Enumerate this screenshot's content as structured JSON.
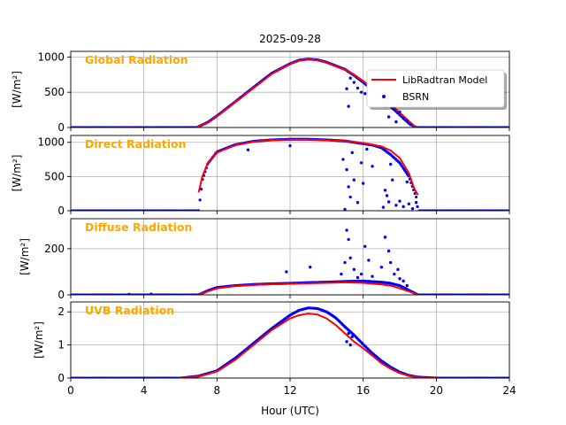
{
  "figure": {
    "title": "2025-09-28",
    "xlabel": "Hour (UTC)",
    "xlim": [
      0,
      24
    ],
    "xticks": [
      0,
      4,
      8,
      12,
      16,
      20,
      24
    ],
    "legend": {
      "placement": "top-right of first panel",
      "entries": [
        {
          "label": "LibRadtran Model",
          "color": "#ff0000",
          "marker": "line"
        },
        {
          "label": "BSRN",
          "color": "#0000ff",
          "marker": "dot"
        }
      ]
    },
    "colors": {
      "model": "#ff0000",
      "bsrn": "#0000ff",
      "panel_label": "#ffa500",
      "grid": "#b0b0b0"
    }
  },
  "chart_data": [
    {
      "type": "scatter",
      "panel_label": "Global Radiation",
      "ylabel": "[W/m²]",
      "ylim": [
        0,
        1080
      ],
      "yticks": [
        0,
        500,
        1000
      ],
      "x_start": 6.9,
      "x_end": 18.9,
      "model": [
        [
          6.9,
          0
        ],
        [
          7.5,
          70
        ],
        [
          8,
          160
        ],
        [
          9,
          360
        ],
        [
          10,
          560
        ],
        [
          11,
          760
        ],
        [
          12,
          900
        ],
        [
          12.5,
          950
        ],
        [
          13,
          965
        ],
        [
          13.5,
          955
        ],
        [
          14,
          920
        ],
        [
          15,
          820
        ],
        [
          15.5,
          750
        ],
        [
          16,
          660
        ],
        [
          16.5,
          560
        ],
        [
          17,
          440
        ],
        [
          17.5,
          330
        ],
        [
          18,
          210
        ],
        [
          18.5,
          90
        ],
        [
          18.9,
          0
        ]
      ],
      "bsrn": [
        [
          6.9,
          0
        ],
        [
          7.5,
          75
        ],
        [
          8,
          165
        ],
        [
          9,
          365
        ],
        [
          10,
          570
        ],
        [
          11,
          770
        ],
        [
          12,
          905
        ],
        [
          12.5,
          955
        ],
        [
          13,
          970
        ],
        [
          13.5,
          960
        ],
        [
          14,
          925
        ],
        [
          15,
          825
        ],
        [
          15.5,
          740
        ],
        [
          16,
          640
        ],
        [
          16.5,
          540
        ],
        [
          17,
          420
        ],
        [
          17.5,
          300
        ],
        [
          18,
          180
        ],
        [
          18.5,
          60
        ],
        [
          18.9,
          0
        ]
      ],
      "bsrn_scatter": [
        [
          15.1,
          550
        ],
        [
          15.2,
          300
        ],
        [
          15.3,
          700
        ],
        [
          15.5,
          640
        ],
        [
          15.7,
          560
        ],
        [
          15.9,
          500
        ],
        [
          16.1,
          480
        ],
        [
          16.3,
          620
        ],
        [
          17.2,
          300
        ],
        [
          17.4,
          150
        ],
        [
          17.6,
          380
        ],
        [
          17.8,
          80
        ],
        [
          18.0,
          220
        ],
        [
          18.2,
          130
        ],
        [
          18.4,
          100
        ],
        [
          18.6,
          40
        ]
      ]
    },
    {
      "type": "scatter",
      "panel_label": "Direct Radiation",
      "ylabel": "[W/m²]",
      "ylim": [
        0,
        1100
      ],
      "yticks": [
        0,
        500,
        1000
      ],
      "x_start": 7.0,
      "x_end": 19.0,
      "model": [
        [
          7,
          270
        ],
        [
          7.2,
          500
        ],
        [
          7.5,
          700
        ],
        [
          8,
          850
        ],
        [
          9,
          960
        ],
        [
          10,
          1010
        ],
        [
          11,
          1030
        ],
        [
          12,
          1040
        ],
        [
          13,
          1040
        ],
        [
          14,
          1030
        ],
        [
          15,
          1020
        ],
        [
          16,
          990
        ],
        [
          17,
          940
        ],
        [
          17.5,
          880
        ],
        [
          18,
          770
        ],
        [
          18.5,
          550
        ],
        [
          18.8,
          320
        ],
        [
          19,
          230
        ]
      ],
      "bsrn": [
        [
          7,
          0
        ],
        [
          7.2,
          450
        ],
        [
          7.5,
          690
        ],
        [
          8,
          860
        ],
        [
          9,
          965
        ],
        [
          10,
          1015
        ],
        [
          11,
          1035
        ],
        [
          12,
          1045
        ],
        [
          13,
          1045
        ],
        [
          14,
          1035
        ],
        [
          15,
          1020
        ],
        [
          15.5,
          1000
        ],
        [
          16,
          980
        ],
        [
          16.5,
          960
        ],
        [
          17,
          920
        ],
        [
          17.5,
          820
        ],
        [
          18,
          700
        ],
        [
          18.5,
          500
        ],
        [
          18.9,
          200
        ],
        [
          19,
          0
        ]
      ],
      "bsrn_scatter": [
        [
          9.7,
          890
        ],
        [
          12,
          950
        ],
        [
          14.9,
          750
        ],
        [
          15.0,
          20
        ],
        [
          15.1,
          600
        ],
        [
          15.2,
          350
        ],
        [
          15.3,
          200
        ],
        [
          15.4,
          850
        ],
        [
          15.5,
          450
        ],
        [
          15.7,
          120
        ],
        [
          15.9,
          700
        ],
        [
          16.0,
          400
        ],
        [
          16.2,
          900
        ],
        [
          16.5,
          650
        ],
        [
          17.1,
          50
        ],
        [
          17.2,
          300
        ],
        [
          17.3,
          220
        ],
        [
          17.4,
          130
        ],
        [
          17.5,
          680
        ],
        [
          17.6,
          450
        ],
        [
          17.8,
          80
        ],
        [
          18.0,
          140
        ],
        [
          18.2,
          60
        ],
        [
          18.4,
          420
        ],
        [
          18.5,
          100
        ],
        [
          18.7,
          30
        ],
        [
          18.9,
          120
        ]
      ]
    },
    {
      "type": "scatter",
      "panel_label": "Diffuse Radiation",
      "ylabel": "[W/m²]",
      "ylim": [
        0,
        330
      ],
      "yticks": [
        0,
        200
      ],
      "x_start": 7.0,
      "x_end": 19.0,
      "model": [
        [
          7,
          0
        ],
        [
          7.5,
          15
        ],
        [
          8,
          28
        ],
        [
          9,
          38
        ],
        [
          10,
          43
        ],
        [
          11,
          46
        ],
        [
          12,
          48
        ],
        [
          13,
          50
        ],
        [
          14,
          52
        ],
        [
          15,
          54
        ],
        [
          16,
          52
        ],
        [
          17,
          45
        ],
        [
          17.5,
          40
        ],
        [
          18,
          28
        ],
        [
          18.5,
          15
        ],
        [
          19,
          0
        ]
      ],
      "bsrn": [
        [
          7,
          0
        ],
        [
          7.5,
          18
        ],
        [
          8,
          32
        ],
        [
          9,
          40
        ],
        [
          10,
          45
        ],
        [
          11,
          48
        ],
        [
          12,
          50
        ],
        [
          13,
          53
        ],
        [
          14,
          55
        ],
        [
          15,
          58
        ],
        [
          16,
          60
        ],
        [
          17,
          55
        ],
        [
          17.5,
          50
        ],
        [
          18,
          40
        ],
        [
          18.5,
          20
        ],
        [
          19,
          0
        ]
      ],
      "bsrn_scatter": [
        [
          3.2,
          2
        ],
        [
          4.4,
          3
        ],
        [
          11.8,
          100
        ],
        [
          13.1,
          120
        ],
        [
          14.8,
          90
        ],
        [
          15.0,
          140
        ],
        [
          15.1,
          280
        ],
        [
          15.2,
          240
        ],
        [
          15.3,
          160
        ],
        [
          15.5,
          110
        ],
        [
          15.7,
          75
        ],
        [
          15.9,
          90
        ],
        [
          16.1,
          210
        ],
        [
          16.3,
          150
        ],
        [
          16.5,
          80
        ],
        [
          17.0,
          120
        ],
        [
          17.2,
          250
        ],
        [
          17.4,
          190
        ],
        [
          17.5,
          140
        ],
        [
          17.7,
          90
        ],
        [
          17.9,
          110
        ],
        [
          18.0,
          70
        ],
        [
          18.2,
          60
        ],
        [
          18.4,
          40
        ]
      ]
    },
    {
      "type": "scatter",
      "panel_label": "UVB Radiation",
      "ylabel": "[W/m²]",
      "ylim": [
        0,
        2.3
      ],
      "yticks": [
        0,
        1,
        2
      ],
      "x_start": 6.0,
      "x_end": 20.0,
      "model": [
        [
          6,
          0
        ],
        [
          7,
          0.05
        ],
        [
          8,
          0.2
        ],
        [
          9,
          0.55
        ],
        [
          10,
          1.0
        ],
        [
          11,
          1.45
        ],
        [
          12,
          1.8
        ],
        [
          12.5,
          1.9
        ],
        [
          13,
          1.95
        ],
        [
          13.5,
          1.92
        ],
        [
          14,
          1.8
        ],
        [
          14.5,
          1.6
        ],
        [
          15,
          1.35
        ],
        [
          15.5,
          1.1
        ],
        [
          16,
          0.9
        ],
        [
          16.5,
          0.68
        ],
        [
          17,
          0.45
        ],
        [
          17.5,
          0.28
        ],
        [
          18,
          0.15
        ],
        [
          18.5,
          0.07
        ],
        [
          19,
          0.02
        ],
        [
          20,
          0
        ]
      ],
      "bsrn": [
        [
          6,
          0
        ],
        [
          7,
          0.06
        ],
        [
          8,
          0.22
        ],
        [
          9,
          0.6
        ],
        [
          10,
          1.05
        ],
        [
          11,
          1.5
        ],
        [
          12,
          1.9
        ],
        [
          12.5,
          2.05
        ],
        [
          13,
          2.12
        ],
        [
          13.5,
          2.1
        ],
        [
          14,
          2.0
        ],
        [
          14.5,
          1.82
        ],
        [
          15,
          1.55
        ],
        [
          15.5,
          1.3
        ],
        [
          16,
          1.02
        ],
        [
          16.5,
          0.75
        ],
        [
          17,
          0.52
        ],
        [
          17.5,
          0.33
        ],
        [
          18,
          0.18
        ],
        [
          18.5,
          0.08
        ],
        [
          19,
          0.03
        ],
        [
          20,
          0
        ]
      ],
      "bsrn_scatter": [
        [
          15.1,
          1.1
        ],
        [
          15.2,
          1.35
        ],
        [
          15.3,
          1.0
        ],
        [
          15.4,
          1.25
        ]
      ]
    }
  ]
}
